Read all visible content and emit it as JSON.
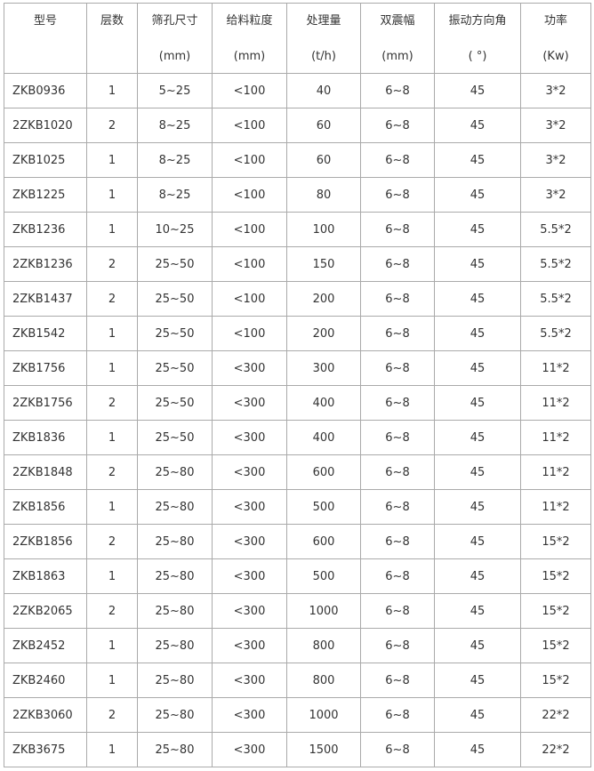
{
  "table": {
    "header": [
      {
        "title": "型号"
      },
      {
        "title": "层数"
      },
      {
        "title": "筛孔尺寸",
        "unit": "(mm)"
      },
      {
        "title": "给料粒度",
        "unit": "(mm)"
      },
      {
        "title": "处理量",
        "unit": "(t/h)"
      },
      {
        "title": "双震幅",
        "unit": "(mm)"
      },
      {
        "title": "振动方向角",
        "unit": "( °)"
      },
      {
        "title": "功率",
        "unit": "(Kw)"
      }
    ],
    "rows": [
      [
        "ZKB0936",
        1,
        "5~25",
        "<100",
        40,
        "6~8",
        45,
        "3*2"
      ],
      [
        "2ZKB1020",
        2,
        "8~25",
        "<100",
        60,
        "6~8",
        45,
        "3*2"
      ],
      [
        "ZKB1025",
        1,
        "8~25",
        "<100",
        60,
        "6~8",
        45,
        "3*2"
      ],
      [
        "ZKB1225",
        1,
        "8~25",
        "<100",
        80,
        "6~8",
        45,
        "3*2"
      ],
      [
        "ZKB1236",
        1,
        "10~25",
        "<100",
        100,
        "6~8",
        45,
        "5.5*2"
      ],
      [
        "2ZKB1236",
        2,
        "25~50",
        "<100",
        150,
        "6~8",
        45,
        "5.5*2"
      ],
      [
        "2ZKB1437",
        2,
        "25~50",
        "<100",
        200,
        "6~8",
        45,
        "5.5*2"
      ],
      [
        "ZKB1542",
        1,
        "25~50",
        "<100",
        200,
        "6~8",
        45,
        "5.5*2"
      ],
      [
        "ZKB1756",
        1,
        "25~50",
        "<300",
        300,
        "6~8",
        45,
        "11*2"
      ],
      [
        "2ZKB1756",
        2,
        "25~50",
        "<300",
        400,
        "6~8",
        45,
        "11*2"
      ],
      [
        "ZKB1836",
        1,
        "25~50",
        "<300",
        400,
        "6~8",
        45,
        "11*2"
      ],
      [
        "2ZKB1848",
        2,
        "25~80",
        "<300",
        600,
        "6~8",
        45,
        "11*2"
      ],
      [
        "ZKB1856",
        1,
        "25~80",
        "<300",
        500,
        "6~8",
        45,
        "11*2"
      ],
      [
        "2ZKB1856",
        2,
        "25~80",
        "<300",
        600,
        "6~8",
        45,
        "15*2"
      ],
      [
        "ZKB1863",
        1,
        "25~80",
        "<300",
        500,
        "6~8",
        45,
        "15*2"
      ],
      [
        "2ZKB2065",
        2,
        "25~80",
        "<300",
        1000,
        "6~8",
        45,
        "15*2"
      ],
      [
        "ZKB2452",
        1,
        "25~80",
        "<300",
        800,
        "6~8",
        45,
        "15*2"
      ],
      [
        "ZKB2460",
        1,
        "25~80",
        "<300",
        800,
        "6~8",
        45,
        "15*2"
      ],
      [
        "2ZKB3060",
        2,
        "25~80",
        "<300",
        1000,
        "6~8",
        45,
        "22*2"
      ],
      [
        "ZKB3675",
        1,
        "25~80",
        "<300",
        1500,
        "6~8",
        45,
        "22*2"
      ]
    ]
  }
}
